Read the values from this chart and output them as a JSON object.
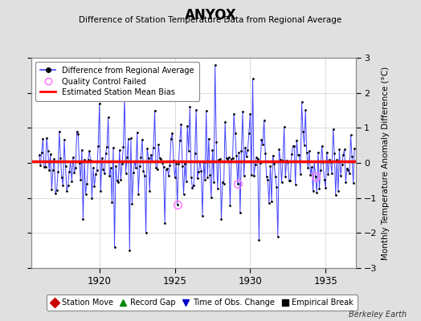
{
  "title": "ANYOX",
  "subtitle": "Difference of Station Temperature Data from Regional Average",
  "ylabel": "Monthly Temperature Anomaly Difference (°C)",
  "ylim": [
    -3,
    3
  ],
  "xlim": [
    1915.5,
    1937.0
  ],
  "xticks": [
    1920,
    1925,
    1930,
    1935
  ],
  "yticks": [
    -3,
    -2,
    -1,
    0,
    1,
    2,
    3
  ],
  "bias": 0.05,
  "background_color": "#e0e0e0",
  "plot_bg_color": "#ffffff",
  "line_color": "#4444ff",
  "bias_color": "#ff0000",
  "marker_color": "#000000",
  "qc_color": "#ff80ff",
  "footer": "Berkeley Earth",
  "seed": 42,
  "n_points": 252,
  "start_year": 1916.0,
  "qc_failed_indices": [
    110,
    158,
    220
  ],
  "legend1_entries": [
    {
      "label": "Difference from Regional Average"
    },
    {
      "label": "Quality Control Failed"
    },
    {
      "label": "Estimated Station Mean Bias"
    }
  ],
  "legend2_entries": [
    {
      "label": "Station Move",
      "marker": "D",
      "color": "#cc0000"
    },
    {
      "label": "Record Gap",
      "marker": "^",
      "color": "#008800"
    },
    {
      "label": "Time of Obs. Change",
      "marker": "v",
      "color": "#0000cc"
    },
    {
      "label": "Empirical Break",
      "marker": "s",
      "color": "#000000"
    }
  ]
}
